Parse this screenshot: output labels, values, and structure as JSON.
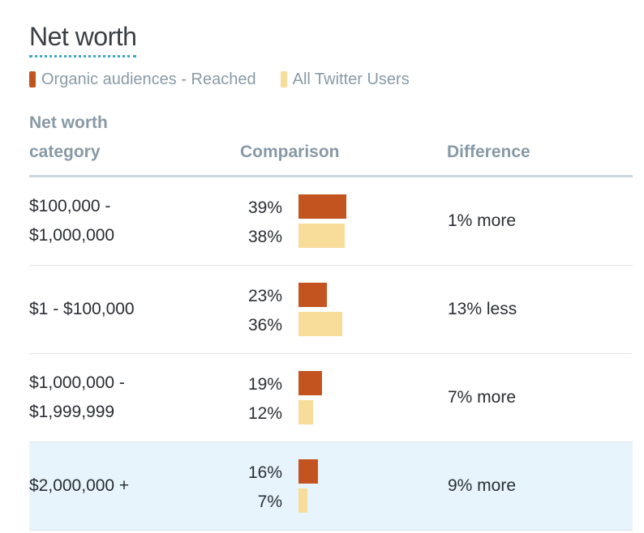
{
  "title": "Net worth",
  "legend": {
    "series_a": {
      "label": "Organic audiences - Reached",
      "color": "#c35420"
    },
    "series_b": {
      "label": "All Twitter Users",
      "color": "#f7dc9a"
    }
  },
  "table": {
    "headers": {
      "category_line1": "Net worth",
      "category_line2": "category",
      "comparison": "Comparison",
      "difference": "Difference"
    },
    "rows": [
      {
        "category_line1": "$100,000 -",
        "category_line2": "$1,000,000",
        "pct_a": "39%",
        "pct_b": "38%",
        "value_a": 39,
        "value_b": 38,
        "difference": "1% more",
        "highlighted": false
      },
      {
        "category_line1": "$1 - $100,000",
        "category_line2": "",
        "pct_a": "23%",
        "pct_b": "36%",
        "value_a": 23,
        "value_b": 36,
        "difference": "13% less",
        "highlighted": false
      },
      {
        "category_line1": "$1,000,000 -",
        "category_line2": "$1,999,999",
        "pct_a": "19%",
        "pct_b": "12%",
        "value_a": 19,
        "value_b": 12,
        "difference": "7% more",
        "highlighted": false
      },
      {
        "category_line1": "$2,000,000 +",
        "category_line2": "",
        "pct_a": "16%",
        "pct_b": "7%",
        "value_a": 16,
        "value_b": 7,
        "difference": "9% more",
        "highlighted": true
      }
    ]
  }
}
